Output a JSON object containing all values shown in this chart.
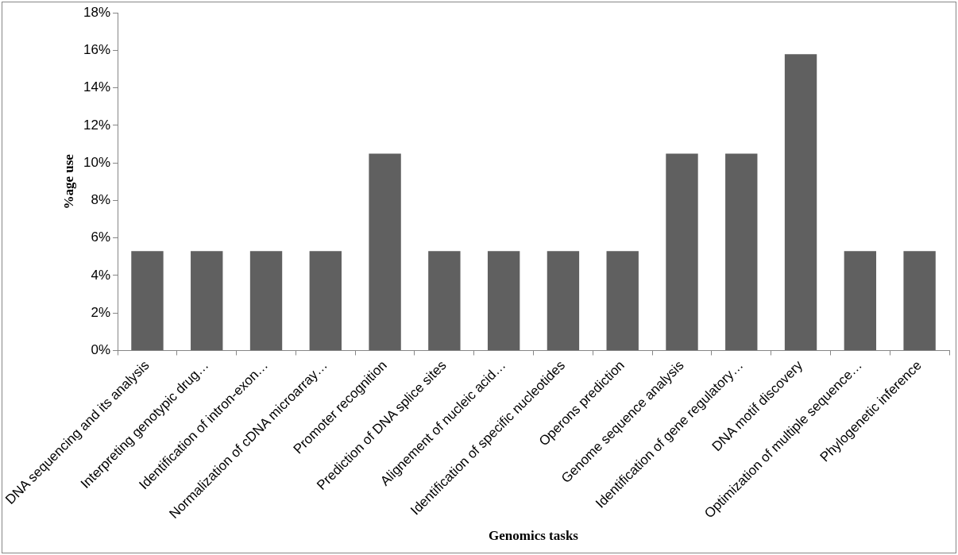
{
  "chart_data": {
    "type": "bar",
    "xlabel": "Genomics tasks",
    "ylabel": "%age use",
    "categories": [
      "DNA sequencing and its analysis",
      "Interpreting genotypic drug…",
      "Identification of intron-exon…",
      "Normalization of cDNA microarray…",
      "Promoter recognition",
      "Prediction of DNA splice sites",
      "Alignement of nucleic acid…",
      "Identification of specific nucleotides",
      "Operons prediction",
      "Genome sequence analysis",
      "Identification of gene regulatory…",
      "DNA motif discovery",
      "Optimization of multiple sequence…",
      "Phylogenetic inference"
    ],
    "values": [
      5.3,
      5.3,
      5.3,
      5.3,
      10.5,
      5.3,
      5.3,
      5.3,
      5.3,
      10.5,
      10.5,
      15.8,
      5.3,
      5.3
    ],
    "color": "#606060",
    "ylim": [
      0,
      18
    ],
    "yticks": [
      {
        "value": 0,
        "label": "0%"
      },
      {
        "value": 2,
        "label": "2%"
      },
      {
        "value": 4,
        "label": "4%"
      },
      {
        "value": 6,
        "label": "6%"
      },
      {
        "value": 8,
        "label": "8%"
      },
      {
        "value": 10,
        "label": "10%"
      },
      {
        "value": 12,
        "label": "12%"
      },
      {
        "value": 14,
        "label": "14%"
      },
      {
        "value": 16,
        "label": "16%"
      },
      {
        "value": 18,
        "label": "18%"
      }
    ],
    "grid": false,
    "legend": false
  }
}
